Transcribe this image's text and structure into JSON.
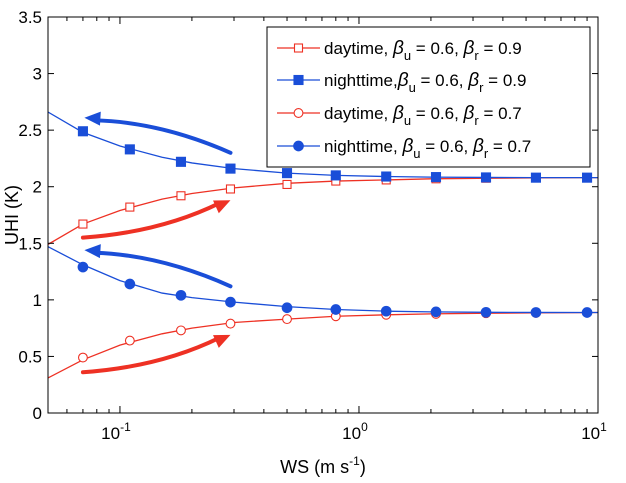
{
  "chart_data": {
    "type": "line",
    "title": "",
    "xlabel": "WS (m s",
    "xlabel_sup": "-1",
    "xlabel_end": ")",
    "ylabel": "UHI (K)",
    "x_scale": "log",
    "xlim": [
      0.05,
      10
    ],
    "ylim": [
      0,
      3.5
    ],
    "grid": false,
    "legend_position": "top-right",
    "x_ticks": [
      {
        "value": 0.1,
        "base": "10",
        "exp": "-1"
      },
      {
        "value": 1,
        "base": "10",
        "exp": "0"
      },
      {
        "value": 10,
        "base": "10",
        "exp": "1"
      }
    ],
    "y_ticks": [
      {
        "value": 0,
        "label": "0"
      },
      {
        "value": 0.5,
        "label": "0.5"
      },
      {
        "value": 1,
        "label": "1"
      },
      {
        "value": 1.5,
        "label": "1.5"
      },
      {
        "value": 2,
        "label": "2"
      },
      {
        "value": 2.5,
        "label": "2.5"
      },
      {
        "value": 3,
        "label": "3"
      },
      {
        "value": 3.5,
        "label": "3.5"
      }
    ],
    "series": [
      {
        "legend": {
          "prefix": "daytime, ",
          "b1": "β",
          "b1sub": "u",
          "mid": " = 0.6, ",
          "b2": "β",
          "b2sub": "r",
          "end": " = 0.9"
        },
        "color": "#ee3124",
        "marker": "square-open",
        "curve": {
          "x": [
            0.05,
            0.07,
            0.1,
            0.15,
            0.2,
            0.3,
            0.5,
            0.8,
            1.3,
            2,
            3.5,
            5.5,
            9,
            10
          ],
          "y": [
            1.49,
            1.67,
            1.79,
            1.89,
            1.94,
            1.99,
            2.03,
            2.05,
            2.06,
            2.07,
            2.075,
            2.078,
            2.08,
            2.08
          ]
        },
        "points": {
          "x": [
            0.07,
            0.11,
            0.18,
            0.29,
            0.5,
            0.8,
            1.3,
            2.1,
            3.4,
            5.5,
            9
          ],
          "y": [
            1.67,
            1.82,
            1.92,
            1.98,
            2.02,
            2.05,
            2.06,
            2.07,
            2.075,
            2.078,
            2.08
          ]
        }
      },
      {
        "legend": {
          "prefix": "nighttime,",
          "b1": "β",
          "b1sub": "u",
          "mid": " = 0.6, ",
          "b2": "β",
          "b2sub": "r",
          "end": " = 0.9"
        },
        "color": "#1a4ed8",
        "marker": "square-filled",
        "curve": {
          "x": [
            0.05,
            0.07,
            0.1,
            0.15,
            0.2,
            0.3,
            0.5,
            0.8,
            1.3,
            2,
            3.5,
            5.5,
            9,
            10
          ],
          "y": [
            2.66,
            2.48,
            2.36,
            2.26,
            2.21,
            2.16,
            2.12,
            2.1,
            2.09,
            2.085,
            2.082,
            2.08,
            2.08,
            2.08
          ]
        },
        "points": {
          "x": [
            0.07,
            0.11,
            0.18,
            0.29,
            0.5,
            0.8,
            1.3,
            2.1,
            3.4,
            5.5,
            9
          ],
          "y": [
            2.49,
            2.33,
            2.22,
            2.16,
            2.12,
            2.1,
            2.09,
            2.085,
            2.082,
            2.08,
            2.08
          ]
        }
      },
      {
        "legend": {
          "prefix": "daytime, ",
          "b1": "β",
          "b1sub": "u",
          "mid": " = 0.6, ",
          "b2": "β",
          "b2sub": "r",
          "end": " = 0.7"
        },
        "color": "#ee3124",
        "marker": "circle-open",
        "curve": {
          "x": [
            0.05,
            0.07,
            0.1,
            0.15,
            0.2,
            0.3,
            0.5,
            0.8,
            1.3,
            2,
            3.5,
            5.5,
            9,
            10
          ],
          "y": [
            0.31,
            0.47,
            0.6,
            0.7,
            0.75,
            0.8,
            0.83,
            0.855,
            0.868,
            0.876,
            0.882,
            0.885,
            0.887,
            0.888
          ]
        },
        "points": {
          "x": [
            0.07,
            0.11,
            0.18,
            0.29,
            0.5,
            0.8,
            1.3,
            2.1,
            3.4,
            5.5,
            9
          ],
          "y": [
            0.49,
            0.64,
            0.73,
            0.79,
            0.83,
            0.855,
            0.868,
            0.876,
            0.882,
            0.885,
            0.887
          ]
        }
      },
      {
        "legend": {
          "prefix": "nighttime, ",
          "b1": "β",
          "b1sub": "u",
          "mid": " = 0.6, ",
          "b2": "β",
          "b2sub": "r",
          "end": " = 0.7"
        },
        "color": "#1a4ed8",
        "marker": "circle-filled",
        "curve": {
          "x": [
            0.05,
            0.07,
            0.1,
            0.15,
            0.2,
            0.3,
            0.5,
            0.8,
            1.3,
            2,
            3.5,
            5.5,
            9,
            10
          ],
          "y": [
            1.47,
            1.31,
            1.17,
            1.06,
            1.02,
            0.98,
            0.94,
            0.915,
            0.9,
            0.894,
            0.89,
            0.889,
            0.888,
            0.888
          ]
        },
        "points": {
          "x": [
            0.07,
            0.11,
            0.18,
            0.29,
            0.5,
            0.8,
            1.3,
            2.1,
            3.4,
            5.5,
            9
          ],
          "y": [
            1.29,
            1.14,
            1.04,
            0.98,
            0.93,
            0.915,
            0.9,
            0.894,
            0.89,
            0.889,
            0.888
          ]
        }
      }
    ],
    "arrows": [
      {
        "name": "nighttime-0.9-arrow",
        "color": "#1a4ed8",
        "from": [
          0.29,
          2.3
        ],
        "to": [
          0.071,
          2.61
        ]
      },
      {
        "name": "daytime-0.9-arrow",
        "color": "#ee3124",
        "from": [
          0.07,
          1.55
        ],
        "to": [
          0.29,
          1.88
        ]
      },
      {
        "name": "nighttime-0.7-arrow",
        "color": "#1a4ed8",
        "from": [
          0.29,
          1.12
        ],
        "to": [
          0.071,
          1.44
        ]
      },
      {
        "name": "daytime-0.7-arrow",
        "color": "#ee3124",
        "from": [
          0.07,
          0.36
        ],
        "to": [
          0.29,
          0.69
        ]
      }
    ]
  }
}
